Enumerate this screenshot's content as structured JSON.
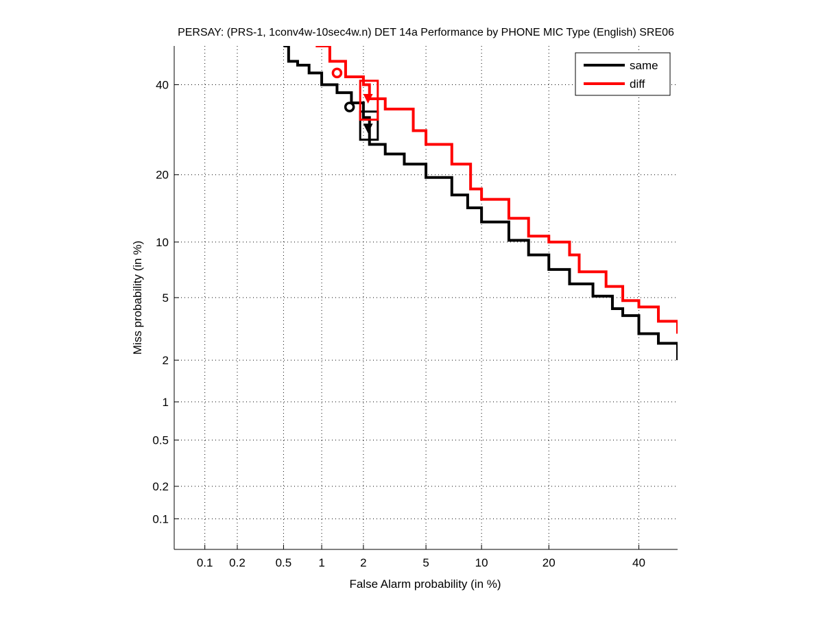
{
  "chart_data": {
    "type": "line",
    "title": "PERSAY: (PRS-1, 1conv4w-10sec4w.n) DET 14a Performance by PHONE MIC Type (English) SRE06",
    "xlabel": "False Alarm probability (in %)",
    "ylabel": "Miss probability (in %)",
    "scale": "normal-deviate",
    "xlim": [
      0.05,
      50
    ],
    "ylim": [
      0.05,
      50
    ],
    "grid": true,
    "legend_position": "top-right",
    "xticks": [
      0.1,
      0.2,
      0.5,
      1,
      2,
      5,
      10,
      20,
      40
    ],
    "xtick_labels": [
      "0.1",
      "0.2",
      "0.5",
      "1",
      "2",
      "5",
      "10",
      "20",
      "40"
    ],
    "yticks": [
      0.1,
      0.2,
      0.5,
      1,
      2,
      5,
      10,
      20,
      40
    ],
    "ytick_labels": [
      "0.1",
      "0.2",
      "0.5",
      "1",
      "2",
      "5",
      "10",
      "20",
      "40"
    ],
    "series": [
      {
        "name": "same",
        "color": "#000000",
        "x": [
          0.5,
          0.55,
          0.65,
          0.8,
          1.0,
          1.3,
          1.65,
          2.0,
          2.2,
          2.8,
          3.7,
          5,
          7,
          8.5,
          10,
          13.5,
          16.5,
          20,
          24,
          29,
          33.5,
          36,
          40,
          45,
          50
        ],
        "y": [
          50,
          46,
          45,
          43,
          40,
          38,
          35.5,
          32,
          26,
          24,
          22,
          19.5,
          16.5,
          14.5,
          12.5,
          10.2,
          8.6,
          7.2,
          6,
          5.1,
          4.3,
          3.9,
          3.0,
          2.6,
          2.0
        ],
        "min_dcf_point": {
          "x": 1.6,
          "y": 34.5
        },
        "act_dcf_point": {
          "x": 2.15,
          "y": 29.5
        },
        "act_dcf_box": {
          "x": [
            1.9,
            2.5
          ],
          "y": [
            27,
            33.4
          ]
        }
      },
      {
        "name": "diff",
        "color": "#ff0000",
        "x": [
          0.9,
          1.15,
          1.5,
          2.0,
          2.2,
          2.8,
          4.2,
          5,
          7,
          8.8,
          10,
          13.5,
          16.5,
          20,
          24,
          26,
          32,
          36,
          40,
          45,
          50
        ],
        "y": [
          50,
          46,
          42,
          40,
          36.5,
          34,
          29,
          26,
          22,
          17.5,
          15.8,
          13,
          10.7,
          10,
          8.6,
          7,
          5.8,
          4.8,
          4.4,
          3.6,
          3.0
        ],
        "min_dcf_point": {
          "x": 1.3,
          "y": 43
        },
        "act_dcf_point": {
          "x": 2.15,
          "y": 36.5
        },
        "act_dcf_box": {
          "x": [
            1.9,
            2.5
          ],
          "y": [
            31.5,
            41
          ]
        }
      }
    ]
  }
}
